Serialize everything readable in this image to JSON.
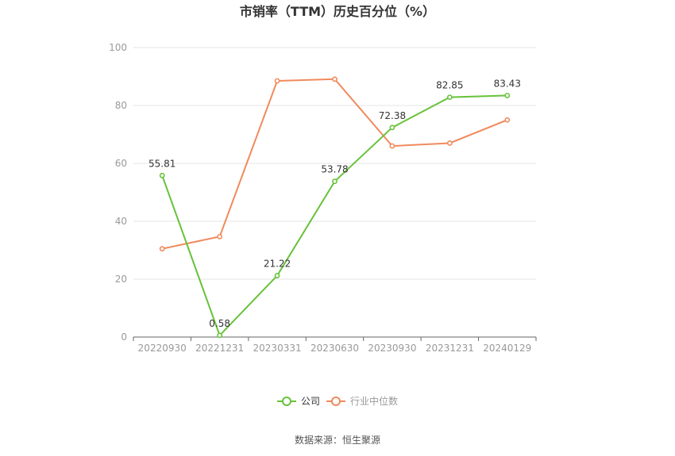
{
  "chart_data": {
    "type": "line",
    "title": "市销率（TTM）历史百分位（%）",
    "categories": [
      "20220930",
      "20221231",
      "20230331",
      "20230630",
      "20230930",
      "20231231",
      "20240129"
    ],
    "ylim": [
      0,
      100
    ],
    "yticks": [
      "0",
      "20",
      "40",
      "60",
      "80",
      "100"
    ],
    "grid": true,
    "legend_position": "bottom",
    "series": [
      {
        "name": "公司",
        "color": "#67c23a",
        "values": [
          55.81,
          0.58,
          21.22,
          53.78,
          72.38,
          82.85,
          83.43
        ],
        "labels": [
          "55.81",
          "0.58",
          "21.22",
          "53.78",
          "72.38",
          "82.85",
          "83.43"
        ]
      },
      {
        "name": "行业中位数",
        "color": "#f08a5d",
        "values": [
          30.5,
          34.7,
          88.5,
          89.1,
          66.0,
          67.0,
          75.0
        ]
      }
    ]
  },
  "source": "数据来源：恒生聚源"
}
